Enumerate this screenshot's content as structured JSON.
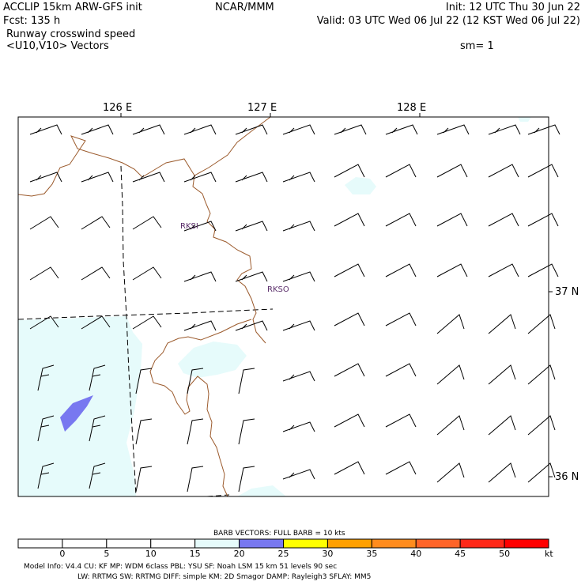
{
  "header": {
    "left_line1": "ACCLIP 15km ARW-GFS init",
    "center_line1": "NCAR/MMM",
    "right_line1": "Init: 12 UTC Thu 30 Jun 22",
    "left_line2": "Fcst:  135 h",
    "right_line2": "Valid: 03 UTC Wed 06 Jul 22 (12 KST Wed 06 Jul 22)",
    "left_line3": "Runway crosswind speed",
    "left_line4": "<U10,V10> Vectors",
    "right_line4": "sm= 1"
  },
  "map": {
    "lon_labels": [
      "126 E",
      "127 E",
      "128 E"
    ],
    "lat_labels": [
      "37 N",
      "36 N"
    ],
    "stations": [
      "RKSI",
      "RKSO"
    ],
    "colors": {
      "frame": "#000000",
      "coastline": "#9b5a2c",
      "boundary": "#000000",
      "light_fill": "#e6fbfb",
      "blue_fill": "#7878f0",
      "station_text": "#5a2d6a"
    }
  },
  "colorbar": {
    "title": "BARB VECTORS:  FULL BARB = 10 kts",
    "tick_labels": [
      "0",
      "5",
      "10",
      "15",
      "20",
      "25",
      "30",
      "35",
      "40",
      "45",
      "50"
    ],
    "unit": "kt",
    "bins": [
      {
        "range": "<0",
        "color": "#ffffff"
      },
      {
        "range": "0-5",
        "color": "#ffffff"
      },
      {
        "range": "5-10",
        "color": "#ffffff"
      },
      {
        "range": "10-15",
        "color": "#ffffff"
      },
      {
        "range": "15-20",
        "color": "#e6fbfb"
      },
      {
        "range": "20-25",
        "color": "#7878f0"
      },
      {
        "range": "25-30",
        "color": "#ffff00"
      },
      {
        "range": "30-35",
        "color": "#ffa000"
      },
      {
        "range": "35-40",
        "color": "#ff8c1e"
      },
      {
        "range": "40-45",
        "color": "#ff6428"
      },
      {
        "range": "45-50",
        "color": "#ff2818"
      },
      {
        "range": ">50",
        "color": "#ff0000"
      }
    ]
  },
  "footer": {
    "line1": "Model Info: V4.4      CU: KF        MP: WDM 6class   PBL: YSU        SF: Noah LSM      15 km    51 levels    90 sec",
    "line2": "LW: RRTMG      SW: RRTMG    DIFF: simple KM: 2D Smagor DAMP: Rayleigh3   SFLAY: MM5"
  }
}
